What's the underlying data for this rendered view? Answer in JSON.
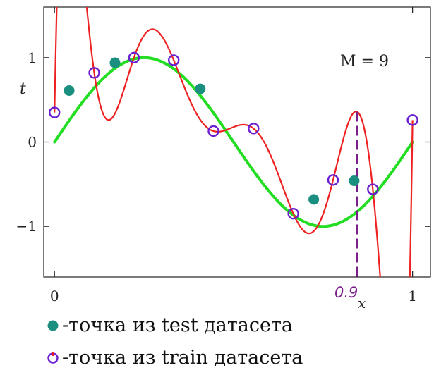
{
  "chart_data": {
    "type": "line",
    "title": "",
    "xlabel": "x",
    "ylabel": "t",
    "xlim": [
      -0.03,
      1.05
    ],
    "ylim": [
      -1.6,
      1.6
    ],
    "x_ticks": [
      "0",
      "1"
    ],
    "y_ticks": [
      "−1",
      "0",
      "1"
    ],
    "x_tick_values": [
      0,
      1
    ],
    "y_tick_values": [
      -1,
      0,
      1
    ],
    "annotation": "M = 9",
    "handwritten_mark": {
      "label": "0.9",
      "x": 0.845
    },
    "series": [
      {
        "kind": "true-curve",
        "color": "#22dd22"
      },
      {
        "kind": "fit-curve",
        "color": "#ee2222"
      }
    ],
    "train_points": [
      {
        "x": 0.0,
        "y": 0.35
      },
      {
        "x": 0.111,
        "y": 0.82
      },
      {
        "x": 0.222,
        "y": 1.0
      },
      {
        "x": 0.333,
        "y": 0.97
      },
      {
        "x": 0.444,
        "y": 0.13
      },
      {
        "x": 0.556,
        "y": 0.16
      },
      {
        "x": 0.667,
        "y": -0.85
      },
      {
        "x": 0.778,
        "y": -0.45
      },
      {
        "x": 0.889,
        "y": -0.56
      },
      {
        "x": 1.0,
        "y": 0.26
      }
    ],
    "test_points": [
      {
        "x": 0.041,
        "y": 0.61
      },
      {
        "x": 0.169,
        "y": 0.94
      },
      {
        "x": 0.407,
        "y": 0.63
      },
      {
        "x": 0.724,
        "y": -0.68
      },
      {
        "x": 0.837,
        "y": -0.46
      }
    ],
    "colors": {
      "true_curve": "#22dd22",
      "fit_curve": "#ee2222",
      "test_fill": "#1a8f80",
      "train_stroke": "#6a1fd0",
      "handwriting": "#7a1f8a"
    }
  },
  "legend": {
    "test_label": "-точка из test датасета",
    "train_label": "-точка из train датасета"
  }
}
